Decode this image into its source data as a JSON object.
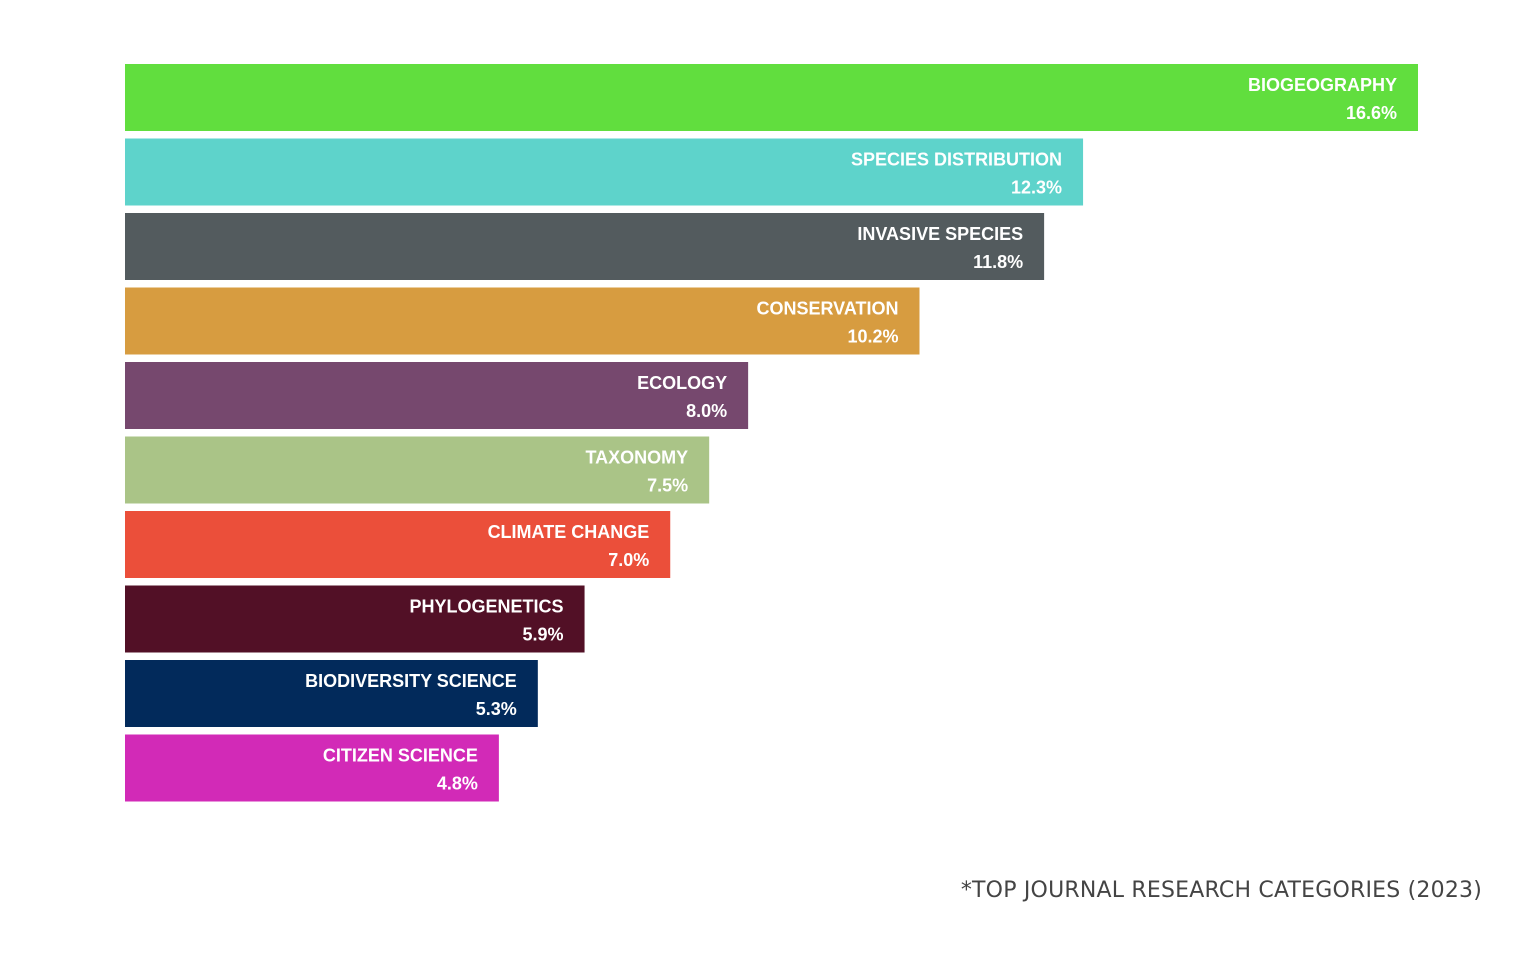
{
  "chart_data": {
    "type": "bar",
    "orientation": "horizontal",
    "categories": [
      "BIOGEOGRAPHY",
      "SPECIES DISTRIBUTION",
      "INVASIVE SPECIES",
      "CONSERVATION",
      "ECOLOGY",
      "TAXONOMY",
      "CLIMATE CHANGE",
      "PHYLOGENETICS",
      "BIODIVERSITY SCIENCE",
      "CITIZEN SCIENCE"
    ],
    "values": [
      16.6,
      12.3,
      11.8,
      10.2,
      8.0,
      7.5,
      7.0,
      5.9,
      5.3,
      4.8
    ],
    "value_labels": [
      "16.6%",
      "12.3%",
      "11.8%",
      "10.2%",
      "8.0%",
      "7.5%",
      "7.0%",
      "5.9%",
      "5.3%",
      "4.8%"
    ],
    "colors": [
      "#61DE3E",
      "#5ED3CB",
      "#535B5E",
      "#D79C40",
      "#76486E",
      "#AAC487",
      "#EB4F3A",
      "#521026",
      "#022A5B",
      "#D22AB7"
    ],
    "title": "",
    "xlabel": "",
    "ylabel": "",
    "xlim": [
      0,
      16.6
    ],
    "grid": false,
    "legend": "none",
    "label_color": "#FFFFFF"
  },
  "footnote": "*TOP JOURNAL RESEARCH CATEGORIES (2023)"
}
